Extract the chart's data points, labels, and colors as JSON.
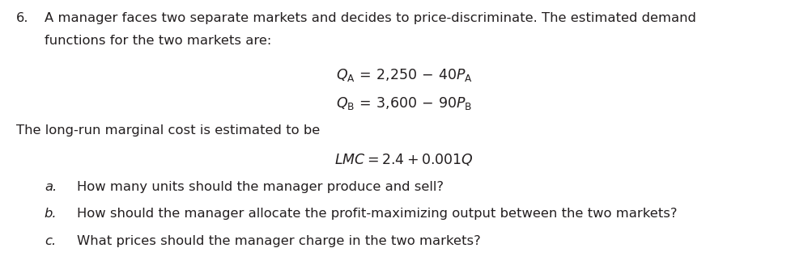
{
  "background_color": "#ffffff",
  "text_color": "#231f20",
  "number": "6.",
  "intro_line1": "A manager faces two separate markets and decides to price-discriminate. The estimated demand",
  "intro_line2": "functions for the two markets are:",
  "lmc_intro": "The long-run marginal cost is estimated to be",
  "part_a_label": "a.",
  "part_a_text": "How many units should the manager produce and sell?",
  "part_b_label": "b.",
  "part_b_text": "How should the manager allocate the profit-maximizing output between the two markets?",
  "part_c_label": "c.",
  "part_c_text": "What prices should the manager charge in the two markets?",
  "font_size_body": 11.8,
  "font_size_eq": 12.5
}
